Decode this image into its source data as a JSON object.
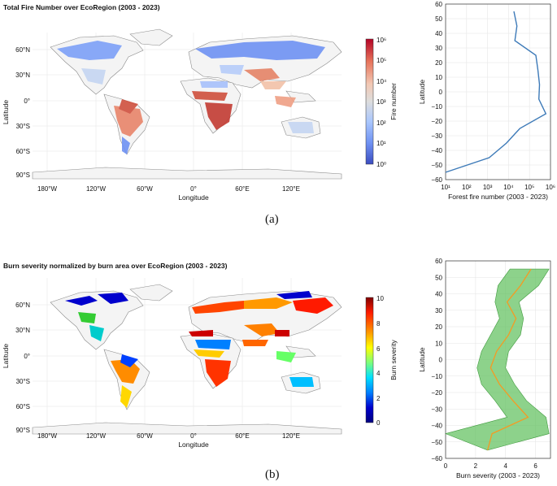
{
  "panel_a": {
    "map": {
      "title": "Total Fire Number over EcoRegion (2003 - 2023)",
      "lon_ticks": [
        "180°W",
        "120°W",
        "60°W",
        "0°",
        "60°E",
        "120°E"
      ],
      "lat_ticks": [
        "60°N",
        "30°N",
        "0°",
        "30°S",
        "60°S",
        "90°S"
      ],
      "xlabel": "Longitude",
      "ylabel": "Latitude",
      "colorbar": {
        "label": "Fire number",
        "scale": "log",
        "ticks": [
          "10⁶",
          "10⁵",
          "10⁴",
          "10³",
          "10²",
          "10¹",
          "10⁰"
        ],
        "colors": [
          "#b40426",
          "#e7745b",
          "#f2c8b4",
          "#dddddd",
          "#aac7fd",
          "#6f92f3",
          "#3b4cc0"
        ]
      }
    },
    "tag": "(a)"
  },
  "panel_b": {
    "map": {
      "title": "Burn severity normalized by burn area over EcoRegion (2003 - 2023)",
      "lon_ticks": [
        "180°W",
        "120°W",
        "60°W",
        "0°",
        "60°E",
        "120°E"
      ],
      "lat_ticks": [
        "60°N",
        "30°N",
        "0°",
        "30°S",
        "60°S",
        "90°S"
      ],
      "xlabel": "Longitude",
      "ylabel": "Latitude",
      "colorbar": {
        "label": "Burn severity",
        "scale": "linear",
        "ticks": [
          "10",
          "8",
          "6",
          "4",
          "2",
          "0"
        ],
        "colors": [
          "#800000",
          "#ff1a00",
          "#ff9900",
          "#ffff00",
          "#7dff7a",
          "#00e0ff",
          "#0080ff",
          "#0000cd",
          "#00007f"
        ]
      }
    },
    "tag": "(b)"
  },
  "chart_data": [
    {
      "type": "line",
      "orientation": "horizontal",
      "xlabel": "Forest fire number (2003 - 2023)",
      "ylabel": "Latitude",
      "xscale": "log",
      "xlim": [
        10,
        1000000
      ],
      "ylim": [
        -60,
        60
      ],
      "x_ticks": [
        "10¹",
        "10²",
        "10³",
        "10⁴",
        "10⁵",
        "10⁶"
      ],
      "y_ticks": [
        "60",
        "50",
        "40",
        "30",
        "20",
        "10",
        "0",
        "−10",
        "−20",
        "−30",
        "−40",
        "−50",
        "−60"
      ],
      "grid": true,
      "series": [
        {
          "color": "#3d7ab8",
          "points": [
            {
              "lat": 55,
              "x": 18000
            },
            {
              "lat": 45,
              "x": 25000
            },
            {
              "lat": 35,
              "x": 20000
            },
            {
              "lat": 25,
              "x": 200000
            },
            {
              "lat": 15,
              "x": 250000
            },
            {
              "lat": 5,
              "x": 300000
            },
            {
              "lat": -5,
              "x": 280000
            },
            {
              "lat": -15,
              "x": 600000
            },
            {
              "lat": -25,
              "x": 35000
            },
            {
              "lat": -35,
              "x": 8000
            },
            {
              "lat": -45,
              "x": 1200
            },
            {
              "lat": -55,
              "x": 10
            }
          ]
        }
      ]
    },
    {
      "type": "area",
      "orientation": "horizontal",
      "xlabel": "Burn severity (2003 - 2023)",
      "ylabel": "Latitude",
      "xlim": [
        0,
        7
      ],
      "ylim": [
        -60,
        60
      ],
      "x_ticks": [
        "0",
        "2",
        "4",
        "6"
      ],
      "y_ticks": [
        "60",
        "50",
        "40",
        "30",
        "20",
        "10",
        "0",
        "−10",
        "−20",
        "−30",
        "−40",
        "−50",
        "−60"
      ],
      "grid": true,
      "series": [
        {
          "line_color": "#f59a23",
          "band_color": "#5cbf5a",
          "points": [
            {
              "lat": 55,
              "mean": 5.7,
              "low": 4.3,
              "high": 6.9
            },
            {
              "lat": 45,
              "mean": 5.0,
              "low": 3.5,
              "high": 6.2
            },
            {
              "lat": 35,
              "mean": 4.1,
              "low": 3.3,
              "high": 4.9
            },
            {
              "lat": 25,
              "mean": 4.7,
              "low": 3.6,
              "high": 5.2
            },
            {
              "lat": 15,
              "mean": 4.2,
              "low": 3.0,
              "high": 5.0
            },
            {
              "lat": 5,
              "mean": 3.4,
              "low": 2.4,
              "high": 4.2
            },
            {
              "lat": -5,
              "mean": 3.0,
              "low": 2.1,
              "high": 4.0
            },
            {
              "lat": -15,
              "mean": 3.6,
              "low": 2.4,
              "high": 4.6
            },
            {
              "lat": -25,
              "mean": 4.5,
              "low": 3.3,
              "high": 5.4
            },
            {
              "lat": -35,
              "mean": 5.5,
              "low": 4.1,
              "high": 6.7
            },
            {
              "lat": -45,
              "mean": 3.1,
              "low": 0.0,
              "high": 6.9
            },
            {
              "lat": -55,
              "mean": 2.8,
              "low": 2.8,
              "high": 2.8
            }
          ]
        }
      ]
    }
  ]
}
